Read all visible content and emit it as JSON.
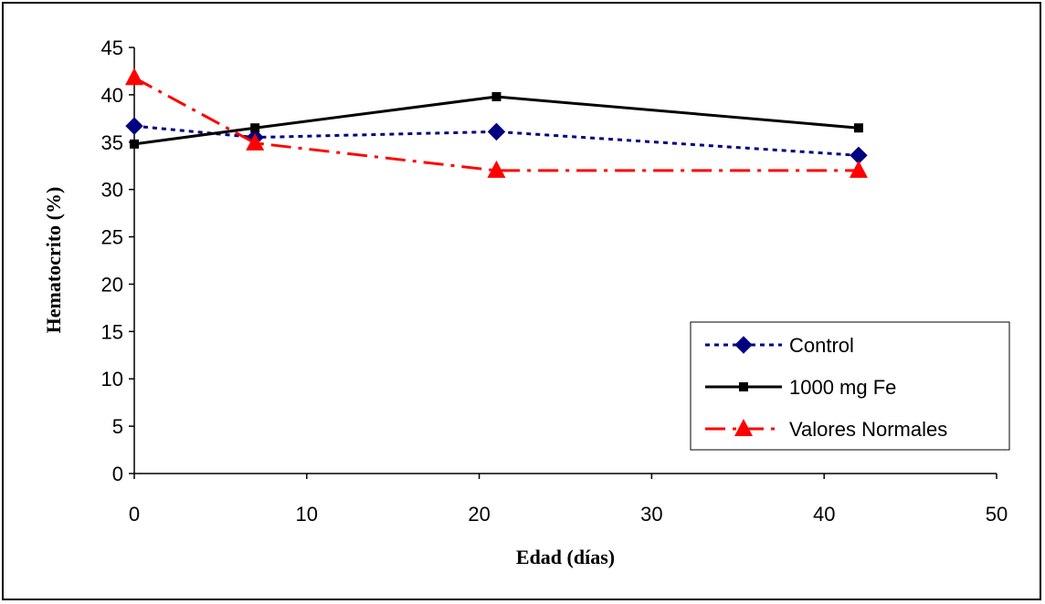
{
  "chart_data": {
    "type": "line",
    "xlabel": "Edad (días)",
    "ylabel": "Hematocrito (%)",
    "xlim": [
      0,
      50
    ],
    "ylim": [
      0,
      45
    ],
    "xticks": [
      0,
      10,
      20,
      30,
      40,
      50
    ],
    "yticks": [
      0,
      5,
      10,
      15,
      20,
      25,
      30,
      35,
      40,
      45
    ],
    "grid": false,
    "legend_position": "bottom-right",
    "series": [
      {
        "name": "Control",
        "color": "#000080",
        "line_style": "dotted",
        "marker": "diamond",
        "x": [
          0,
          7,
          21,
          42
        ],
        "y": [
          36.7,
          35.5,
          36.1,
          33.6
        ]
      },
      {
        "name": "1000 mg Fe",
        "color": "#000000",
        "line_style": "solid",
        "marker": "square",
        "x": [
          0,
          7,
          21,
          42
        ],
        "y": [
          34.8,
          36.5,
          39.8,
          36.5
        ]
      },
      {
        "name": "Valores Normales",
        "color": "#ff0000",
        "line_style": "dash-dot",
        "marker": "triangle",
        "x": [
          0,
          7,
          21,
          42
        ],
        "y": [
          41.8,
          34.9,
          32,
          32
        ]
      }
    ]
  }
}
